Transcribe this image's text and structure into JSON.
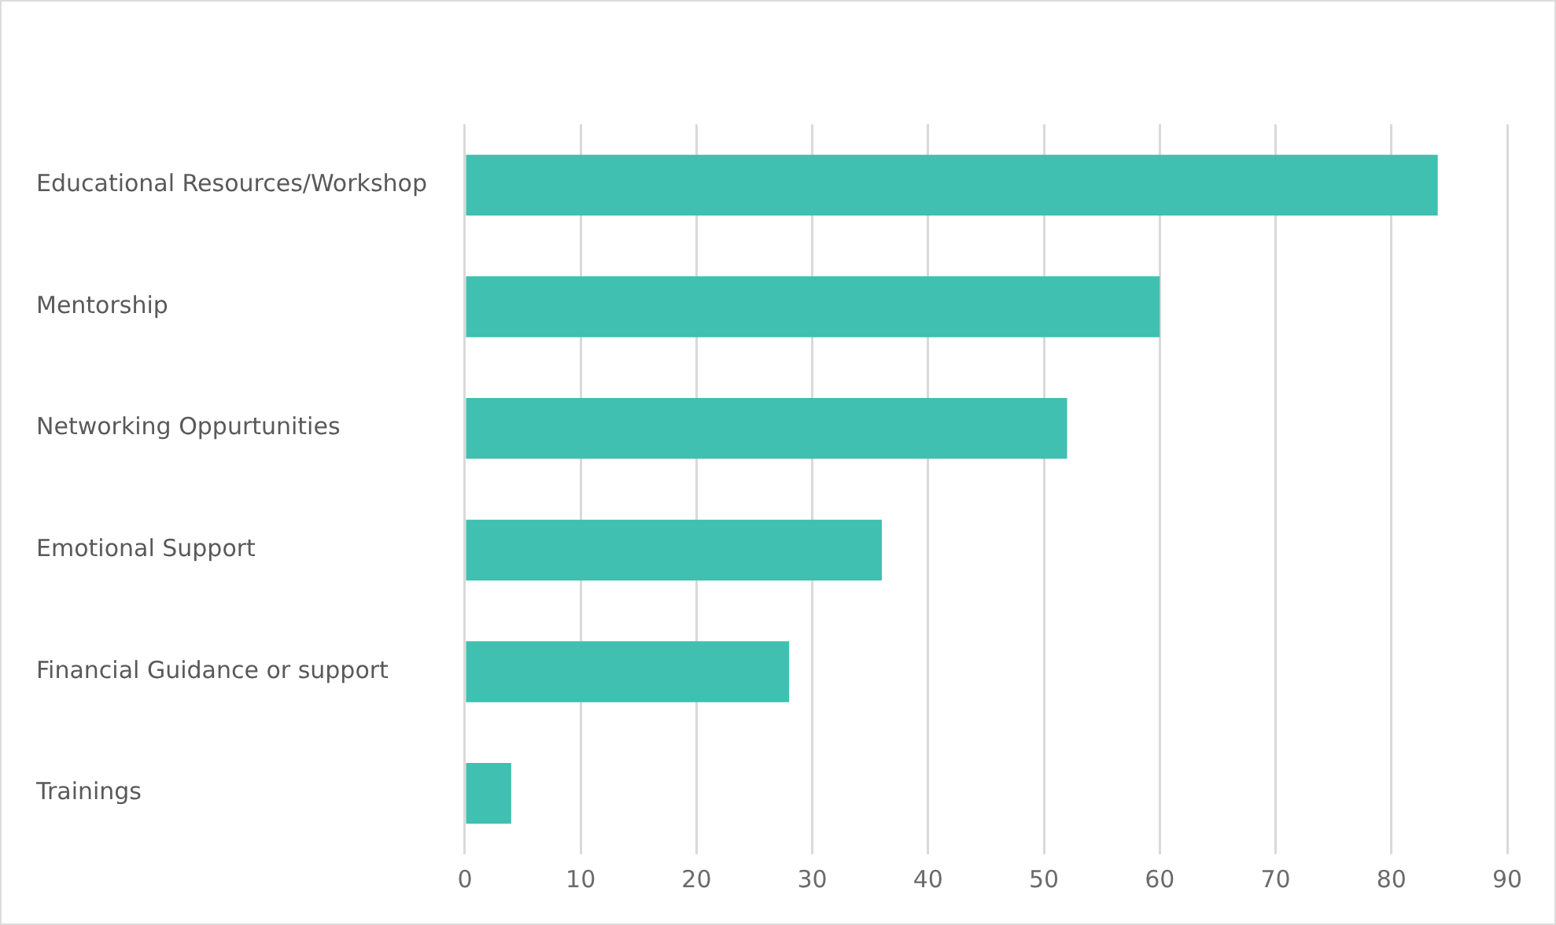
{
  "chart_data": {
    "type": "bar",
    "orientation": "horizontal",
    "categories": [
      "Educational Resources/Workshop",
      "Mentorship",
      "Networking Oppurtunities",
      "Emotional Support",
      "Financial Guidance or support",
      "Trainings"
    ],
    "values": [
      84,
      60,
      52,
      36,
      28,
      4
    ],
    "color": "#3fc0b0",
    "xlim": [
      0,
      90
    ],
    "xticks": [
      0,
      10,
      20,
      30,
      40,
      50,
      60,
      70,
      80,
      90
    ],
    "grid": "x",
    "legend": false
  }
}
